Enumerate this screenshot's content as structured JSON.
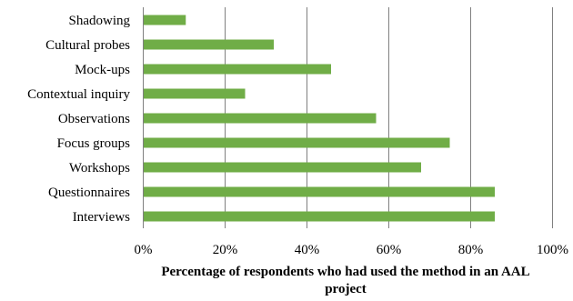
{
  "chart_data": {
    "type": "bar",
    "orientation": "horizontal",
    "categories": [
      "Shadowing",
      "Cultural probes",
      "Mock-ups",
      "Contextual inquiry",
      "Observations",
      "Focus groups",
      "Workshops",
      "Questionnaires",
      "Interviews"
    ],
    "values": [
      10.5,
      32,
      46,
      25,
      57,
      75,
      68,
      86,
      86
    ],
    "value_unit": "%",
    "xlim": [
      0,
      100
    ],
    "ticks": [
      "0%",
      "20%",
      "40%",
      "60%",
      "80%",
      "100%"
    ],
    "xlabel_lines": [
      "Percentage of respondents who had used the method in an AAL",
      "project"
    ],
    "ylabel": "",
    "title": "",
    "grid": "vertical",
    "legend": "none",
    "bar_color": "#70ad47",
    "grid_color": "#808080"
  }
}
